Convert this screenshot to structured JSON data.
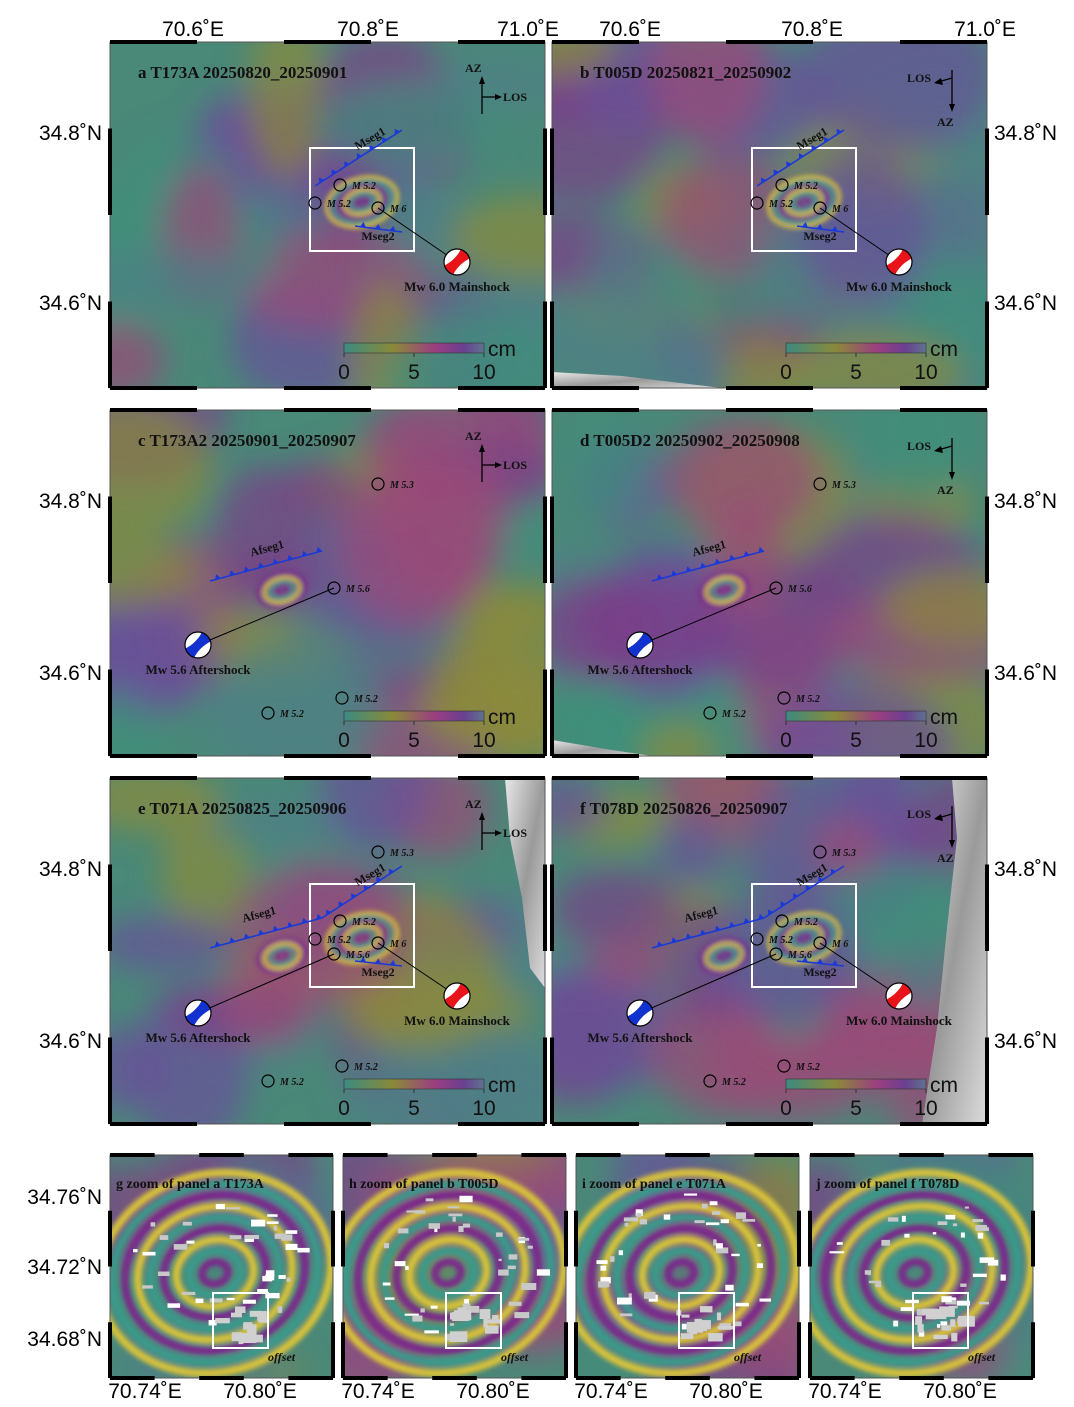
{
  "axes": {
    "lon_ticks": [
      "70.6˚E",
      "70.8˚E",
      "71.0˚E"
    ],
    "lat_ticks": [
      "34.8˚N",
      "34.6˚N"
    ],
    "zoom_lon_ticks": [
      "70.74˚E",
      "70.80˚E"
    ],
    "zoom_lat_ticks": [
      "34.76˚N",
      "34.72˚N",
      "34.68˚N"
    ]
  },
  "colorbar": {
    "unit": "cm",
    "ticks": [
      0,
      5,
      10
    ]
  },
  "panels": [
    {
      "title": "a T173A 20250820_20250901",
      "az": "AZ",
      "los": "LOS",
      "faults": [
        "Mseg1",
        "Mseg2"
      ],
      "events": [
        "M 5.2",
        "M 5.2",
        "M 6"
      ],
      "beachballs": [
        "Mw 6.0 Mainshock"
      ]
    },
    {
      "title": "b T005D 20250821_20250902",
      "az": "AZ",
      "los": "LOS",
      "faults": [
        "Mseg1",
        "Mseg2"
      ],
      "events": [
        "M 5.2",
        "M 5.2",
        "M 6"
      ],
      "beachballs": [
        "Mw 6.0 Mainshock"
      ]
    },
    {
      "title": "c T173A2 20250901_20250907",
      "az": "AZ",
      "los": "LOS",
      "faults": [
        "Afseg1"
      ],
      "events": [
        "M 5.3",
        "M 5.6",
        "M 5.2",
        "M 5.2"
      ],
      "beachballs": [
        "Mw 5.6 Aftershock"
      ]
    },
    {
      "title": "d T005D2 20250902_20250908",
      "az": "AZ",
      "los": "LOS",
      "faults": [
        "Afseg1"
      ],
      "events": [
        "M 5.3",
        "M 5.6",
        "M 5.2",
        "M 5.2"
      ],
      "beachballs": [
        "Mw 5.6 Aftershock"
      ]
    },
    {
      "title": "e T071A 20250825_20250906",
      "az": "AZ",
      "los": "LOS",
      "faults": [
        "Afseg1",
        "Mseg1",
        "Mseg2"
      ],
      "events": [
        "M 5.3",
        "M 5.2",
        "M 5.2",
        "M 5.6",
        "M 6",
        "M 5.2",
        "M 5.2"
      ],
      "beachballs": [
        "Mw 5.6 Aftershock",
        "Mw 6.0 Mainshock"
      ]
    },
    {
      "title": "f T078D 20250826_20250907",
      "az": "AZ",
      "los": "LOS",
      "faults": [
        "Afseg1",
        "Mseg1",
        "Mseg2"
      ],
      "events": [
        "M 5.3",
        "M 5.2",
        "M 5.2",
        "M 5.6",
        "M 6",
        "M 5.2",
        "M 5.2"
      ],
      "beachballs": [
        "Mw 5.6 Aftershock",
        "Mw 6.0 Mainshock"
      ]
    }
  ],
  "zoom_panels": [
    {
      "title": "g zoom of panel a T173A",
      "note": "offset"
    },
    {
      "title": "h zoom of panel b T005D",
      "note": "offset"
    },
    {
      "title": "i zoom of panel e T071A",
      "note": "offset"
    },
    {
      "title": "j zoom of panel f T078D",
      "note": "offset"
    }
  ]
}
